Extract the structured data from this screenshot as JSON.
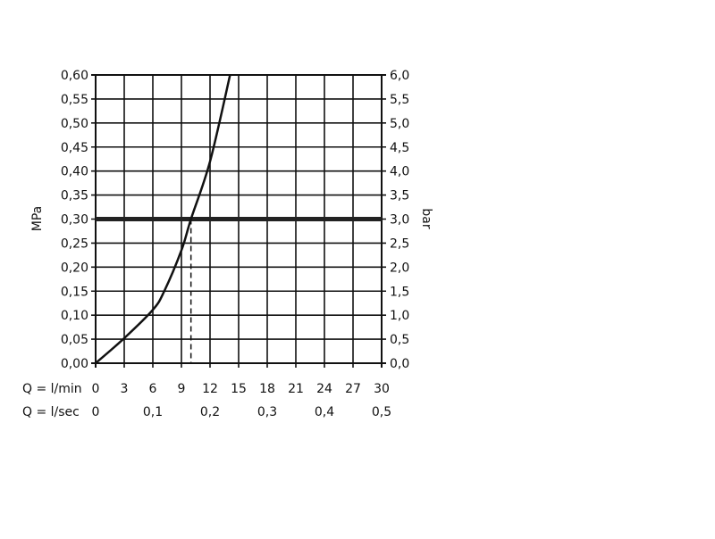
{
  "chart_data": {
    "type": "line",
    "title": "",
    "ylabel_left": "MPa",
    "ylabel_right": "bar",
    "x_row_labels": [
      "Q = l/min",
      "Q = l/sec"
    ],
    "x_ticks_lmin": [
      "0",
      "3",
      "6",
      "9",
      "12",
      "15",
      "18",
      "21",
      "24",
      "27",
      "30"
    ],
    "x_ticks_lsec": [
      "0",
      "0,1",
      "0,2",
      "0,3",
      "0,4",
      "0,5"
    ],
    "y_ticks_left": [
      "0,00",
      "0,05",
      "0,10",
      "0,15",
      "0,20",
      "0,25",
      "0,30",
      "0,35",
      "0,40",
      "0,45",
      "0,50",
      "0,55",
      "0,60"
    ],
    "y_ticks_right": [
      "0,0",
      "0,5",
      "1,0",
      "1,5",
      "2,0",
      "2,5",
      "3,0",
      "3,5",
      "4,0",
      "4,5",
      "5,0",
      "5,5",
      "6,0"
    ],
    "xlim": [
      0,
      30
    ],
    "ylim": [
      0,
      0.6
    ],
    "grid": true,
    "series": [
      {
        "x": [
          0,
          3,
          6,
          7.2,
          9,
          10,
          12,
          14.1
        ],
        "y": [
          0,
          0.052,
          0.111,
          0.15,
          0.235,
          0.3,
          0.42,
          0.6
        ]
      }
    ],
    "reference_line": {
      "y": 0.3
    },
    "marker_line": {
      "x": 10,
      "y": 0.3,
      "style": "dashed"
    },
    "colors": {
      "line": "#111111",
      "grid": "#111111"
    }
  }
}
